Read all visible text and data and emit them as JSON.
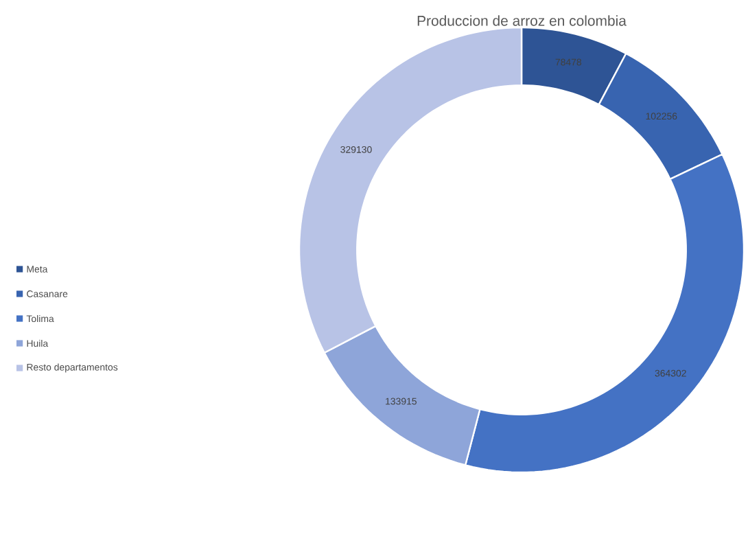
{
  "chart_data": {
    "type": "donut",
    "title": "Produccion de arroz en colombia",
    "categories": [
      "Meta",
      "Casanare",
      "Tolima",
      "Huila",
      "Resto departamentos"
    ],
    "values": [
      78478,
      102256,
      364302,
      133915,
      329130
    ],
    "colors": [
      "#2e5495",
      "#3864b0",
      "#4472c4",
      "#8ea5d9",
      "#b8c3e6"
    ],
    "data_labels": true,
    "legend": "left"
  }
}
